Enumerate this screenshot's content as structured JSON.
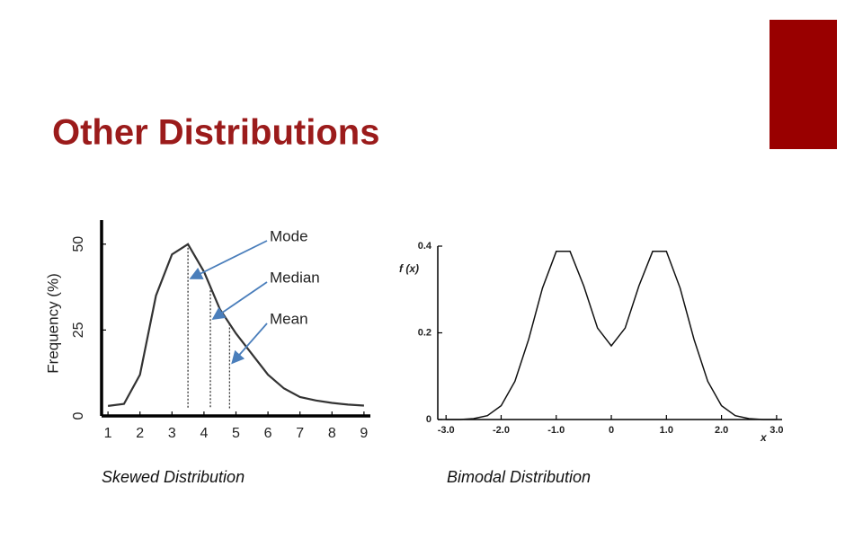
{
  "title": "Other Distributions",
  "chart_data": [
    {
      "type": "line",
      "caption": "Skewed Distribution",
      "y_label": "Frequency (%)",
      "color": "#333333",
      "x": [
        1,
        1.5,
        2,
        2.5,
        3,
        3.5,
        4,
        4.5,
        5,
        5.5,
        6,
        6.5,
        7,
        7.5,
        8,
        8.5,
        9
      ],
      "values": [
        2.9,
        3.5,
        12,
        35,
        47,
        50,
        42,
        31,
        24,
        18,
        12,
        8,
        5.5,
        4.5,
        3.8,
        3.3,
        3
      ],
      "xlim": [
        0.8,
        9.2
      ],
      "ylim": [
        0,
        57
      ],
      "xticks": [
        1,
        2,
        3,
        4,
        5,
        6,
        7,
        8,
        9
      ],
      "yticks": [
        0,
        25,
        50
      ],
      "annotations": [
        {
          "text": "Mode",
          "x": 3.5
        },
        {
          "text": "Median",
          "x": 4.2
        },
        {
          "text": "Mean",
          "x": 4.8
        }
      ]
    },
    {
      "type": "line",
      "caption": "Bimodal Distribution",
      "y_label": "f (x)",
      "x_label": "x",
      "color": "#111111",
      "x": [
        -3,
        -2.75,
        -2.5,
        -2.25,
        -2,
        -1.75,
        -1.5,
        -1.25,
        -1,
        -0.75,
        -0.5,
        -0.25,
        0,
        0.25,
        0.5,
        0.75,
        1,
        1.25,
        1.5,
        1.75,
        2,
        2.25,
        2.5,
        2.75,
        3
      ],
      "values": [
        0,
        0,
        0.002,
        0.009,
        0.032,
        0.088,
        0.185,
        0.303,
        0.388,
        0.388,
        0.308,
        0.211,
        0.17,
        0.211,
        0.308,
        0.388,
        0.388,
        0.303,
        0.185,
        0.088,
        0.032,
        0.009,
        0.002,
        0,
        0
      ],
      "xlim": [
        -3.15,
        3.1
      ],
      "ylim": [
        0,
        0.4
      ],
      "xticks": [
        {
          "value": -3,
          "label": "-3.0"
        },
        {
          "value": -2,
          "label": "-2.0"
        },
        {
          "value": -1,
          "label": "-1.0"
        },
        0,
        {
          "value": 1,
          "label": "1.0"
        },
        {
          "value": 2,
          "label": "2.0"
        },
        {
          "value": 3,
          "label": "3.0"
        }
      ],
      "yticks": [
        0,
        0.2,
        0.4
      ]
    }
  ]
}
